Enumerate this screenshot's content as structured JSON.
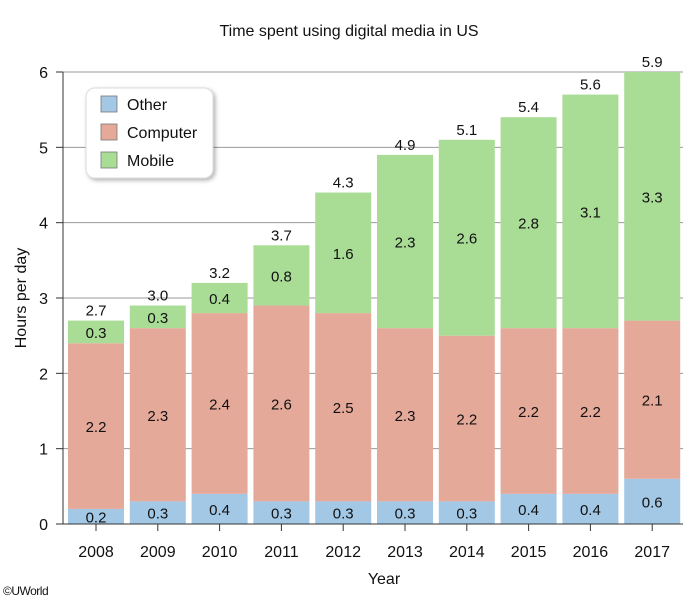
{
  "chart_data": {
    "type": "stacked-bar",
    "title": "Time spent using digital media in US",
    "xlabel": "Year",
    "ylabel": "Hours per day",
    "ylim": [
      0,
      6
    ],
    "yticks": [
      "0",
      "1",
      "2",
      "3",
      "4",
      "5",
      "6"
    ],
    "grid": true,
    "legend_position": "top-left",
    "categories": [
      "2008",
      "2009",
      "2010",
      "2011",
      "2012",
      "2013",
      "2014",
      "2015",
      "2016",
      "2017"
    ],
    "series": [
      {
        "name": "Other",
        "color": "#a3c8e6",
        "values": [
          0.2,
          0.3,
          0.4,
          0.3,
          0.3,
          0.3,
          0.3,
          0.4,
          0.4,
          0.6
        ]
      },
      {
        "name": "Computer",
        "color": "#e5a99a",
        "values": [
          2.2,
          2.3,
          2.4,
          2.6,
          2.5,
          2.3,
          2.2,
          2.2,
          2.2,
          2.1
        ]
      },
      {
        "name": "Mobile",
        "color": "#a9dd96",
        "values": [
          0.3,
          0.3,
          0.4,
          0.8,
          1.6,
          2.3,
          2.6,
          2.8,
          3.1,
          3.3
        ]
      }
    ],
    "totals": [
      "2.7",
      "3.0",
      "3.2",
      "3.7",
      "4.3",
      "4.9",
      "5.1",
      "5.4",
      "5.6",
      "5.9"
    ]
  },
  "copyright": "©UWorld"
}
